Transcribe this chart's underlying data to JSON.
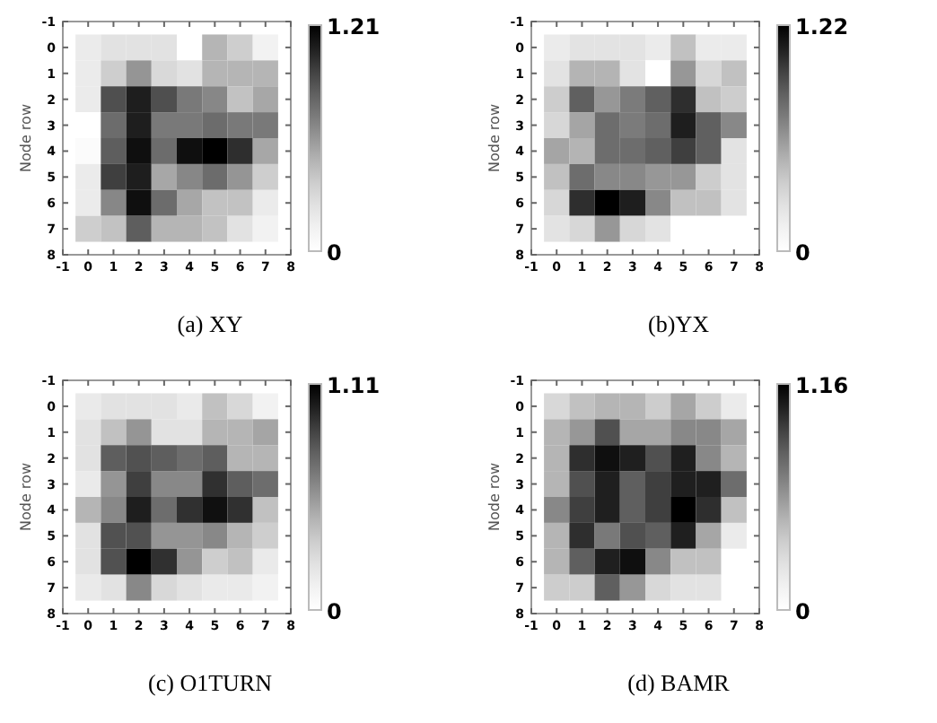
{
  "chart_data": [
    {
      "type": "heatmap",
      "title": "(a) XY",
      "ylabel": "Node row",
      "categories": [
        "-1",
        "0",
        "1",
        "2",
        "3",
        "4",
        "5",
        "6",
        "7",
        "8"
      ],
      "y_categories": [
        "-1",
        "0",
        "1",
        "2",
        "3",
        "4",
        "5",
        "6",
        "7",
        "8"
      ],
      "clim": [
        0,
        1.21
      ],
      "cticks": [
        0,
        1.21
      ],
      "cells": [
        [
          null,
          null,
          null,
          null,
          null,
          null,
          null,
          null,
          null,
          null
        ],
        [
          null,
          0.18,
          0.24,
          0.24,
          0.24,
          0,
          0.48,
          0.36,
          0.12,
          null
        ],
        [
          null,
          0.18,
          0.36,
          0.61,
          0.3,
          0.24,
          0.48,
          0.48,
          0.48,
          null
        ],
        [
          null,
          0.18,
          0.91,
          1.09,
          0.91,
          0.73,
          0.67,
          0.42,
          0.54,
          null
        ],
        [
          null,
          0,
          0.79,
          1.09,
          0.73,
          0.73,
          0.79,
          0.73,
          0.73,
          null
        ],
        [
          null,
          0.04,
          0.85,
          1.15,
          0.79,
          1.15,
          1.21,
          1.03,
          0.54,
          null
        ],
        [
          null,
          0.18,
          0.97,
          1.09,
          0.54,
          0.67,
          0.79,
          0.61,
          0.36,
          null
        ],
        [
          null,
          0.18,
          0.67,
          1.15,
          0.79,
          0.54,
          0.42,
          0.42,
          0.18,
          null
        ],
        [
          null,
          0.36,
          0.42,
          0.85,
          0.48,
          0.48,
          0.42,
          0.24,
          0.12,
          null
        ],
        [
          null,
          null,
          null,
          null,
          null,
          null,
          null,
          null,
          null,
          null
        ]
      ]
    },
    {
      "type": "heatmap",
      "title": "(b)YX",
      "ylabel": "Node row",
      "categories": [
        "-1",
        "0",
        "1",
        "2",
        "3",
        "4",
        "5",
        "6",
        "7",
        "8"
      ],
      "y_categories": [
        "-1",
        "0",
        "1",
        "2",
        "3",
        "4",
        "5",
        "6",
        "7",
        "8"
      ],
      "clim": [
        0,
        1.22
      ],
      "cticks": [
        0,
        1.22
      ],
      "cells": [
        [
          null,
          null,
          null,
          null,
          null,
          null,
          null,
          null,
          null,
          null
        ],
        [
          null,
          0.18,
          0.24,
          0.24,
          0.24,
          0.18,
          0.43,
          0.18,
          0.18,
          null
        ],
        [
          null,
          0.24,
          0.49,
          0.49,
          0.24,
          0,
          0.61,
          0.31,
          0.43,
          null
        ],
        [
          null,
          0.37,
          0.85,
          0.61,
          0.73,
          0.85,
          1.04,
          0.43,
          0.37,
          null
        ],
        [
          null,
          0.31,
          0.55,
          0.79,
          0.73,
          0.79,
          1.1,
          0.85,
          0.67,
          null
        ],
        [
          null,
          0.55,
          0.49,
          0.79,
          0.79,
          0.85,
          0.98,
          0.85,
          0.24,
          null
        ],
        [
          null,
          0.43,
          0.79,
          0.67,
          0.67,
          0.61,
          0.61,
          0.37,
          0.24,
          null
        ],
        [
          null,
          0.31,
          1.04,
          1.22,
          1.1,
          0.67,
          0.43,
          0.43,
          0.24,
          null
        ],
        [
          null,
          0.24,
          0.31,
          0.61,
          0.31,
          0.24,
          0,
          0,
          0,
          null
        ],
        [
          null,
          null,
          null,
          null,
          null,
          null,
          null,
          null,
          null,
          null
        ]
      ]
    },
    {
      "type": "heatmap",
      "title": "(c) O1TURN",
      "ylabel": "Node row",
      "categories": [
        "-1",
        "0",
        "1",
        "2",
        "3",
        "4",
        "5",
        "6",
        "7",
        "8"
      ],
      "y_categories": [
        "-1",
        "0",
        "1",
        "2",
        "3",
        "4",
        "5",
        "6",
        "7",
        "8"
      ],
      "clim": [
        0,
        1.11
      ],
      "cticks": [
        0,
        1.11
      ],
      "cells": [
        [
          null,
          null,
          null,
          null,
          null,
          null,
          null,
          null,
          null,
          null
        ],
        [
          null,
          0.17,
          0.22,
          0.22,
          0.22,
          0.17,
          0.39,
          0.28,
          0.11,
          null
        ],
        [
          null,
          0.22,
          0.39,
          0.56,
          0.22,
          0.22,
          0.44,
          0.44,
          0.5,
          null
        ],
        [
          null,
          0.22,
          0.78,
          0.83,
          0.78,
          0.72,
          0.78,
          0.44,
          0.44,
          null
        ],
        [
          null,
          0.17,
          0.56,
          0.89,
          0.61,
          0.61,
          0.94,
          0.78,
          0.72,
          null
        ],
        [
          null,
          0.44,
          0.61,
          1.0,
          0.72,
          0.94,
          1.05,
          0.94,
          0.39,
          null
        ],
        [
          null,
          0.22,
          0.83,
          0.83,
          0.56,
          0.56,
          0.61,
          0.44,
          0.33,
          null
        ],
        [
          null,
          0.22,
          0.83,
          1.11,
          0.94,
          0.56,
          0.33,
          0.39,
          0.17,
          null
        ],
        [
          null,
          0.17,
          0.22,
          0.61,
          0.28,
          0.22,
          0.17,
          0.17,
          0.11,
          null
        ],
        [
          null,
          null,
          null,
          null,
          null,
          null,
          null,
          null,
          null,
          null
        ]
      ]
    },
    {
      "type": "heatmap",
      "title": "(d) BAMR",
      "ylabel": "Node row",
      "categories": [
        "-1",
        "0",
        "1",
        "2",
        "3",
        "4",
        "5",
        "6",
        "7",
        "8"
      ],
      "y_categories": [
        "-1",
        "0",
        "1",
        "2",
        "3",
        "4",
        "5",
        "6",
        "7",
        "8"
      ],
      "clim": [
        0,
        1.16
      ],
      "cticks": [
        0,
        1.16
      ],
      "cells": [
        [
          null,
          null,
          null,
          null,
          null,
          null,
          null,
          null,
          null,
          null
        ],
        [
          null,
          0.29,
          0.41,
          0.46,
          0.46,
          0.35,
          0.52,
          0.35,
          0.17,
          null
        ],
        [
          null,
          0.46,
          0.58,
          0.87,
          0.52,
          0.52,
          0.64,
          0.64,
          0.52,
          null
        ],
        [
          null,
          0.46,
          0.99,
          1.1,
          1.04,
          0.87,
          1.04,
          0.64,
          0.46,
          null
        ],
        [
          null,
          0.46,
          0.87,
          1.04,
          0.81,
          0.93,
          1.04,
          1.04,
          0.75,
          null
        ],
        [
          null,
          0.64,
          0.93,
          1.04,
          0.81,
          0.93,
          1.16,
          0.99,
          0.41,
          null
        ],
        [
          null,
          0.46,
          0.99,
          0.7,
          0.87,
          0.81,
          1.04,
          0.52,
          0.17,
          null
        ],
        [
          null,
          0.46,
          0.81,
          1.04,
          1.1,
          0.64,
          0.41,
          0.41,
          0,
          null
        ],
        [
          null,
          0.35,
          0.35,
          0.81,
          0.58,
          0.29,
          0.23,
          0.23,
          0,
          null
        ],
        [
          null,
          null,
          null,
          null,
          null,
          null,
          null,
          null,
          null,
          null
        ]
      ]
    }
  ]
}
